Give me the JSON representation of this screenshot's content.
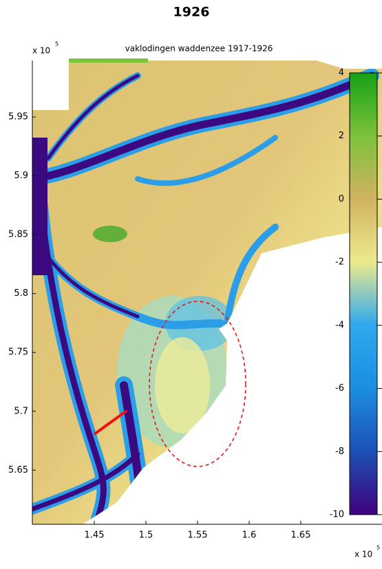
{
  "chart_data": {
    "type": "map",
    "header": "1926",
    "title": "vaklodingen waddenzee 1917-1926",
    "x_multiplier": {
      "base": "x 10",
      "exponent": "5"
    },
    "y_multiplier": {
      "base": "x 10",
      "exponent": "5"
    },
    "xlim": [
      1.39,
      1.724
    ],
    "xticks": [
      1.45,
      1.5,
      1.55,
      1.6,
      1.65
    ],
    "ylim": [
      5.604,
      5.998
    ],
    "yticks": [
      5.65,
      5.7,
      5.75,
      5.8,
      5.85,
      5.9,
      5.95
    ],
    "clim": [
      -10,
      4
    ],
    "colorbar_ticks": [
      -10,
      -8,
      -6,
      -4,
      -2,
      0,
      2,
      4
    ],
    "colormap": [
      "#16a016",
      "#7cc23a",
      "#d2b262",
      "#ecea8e",
      "#2ea8ee",
      "#1c8ee0",
      "#1c50b4",
      "#40007e"
    ]
  }
}
